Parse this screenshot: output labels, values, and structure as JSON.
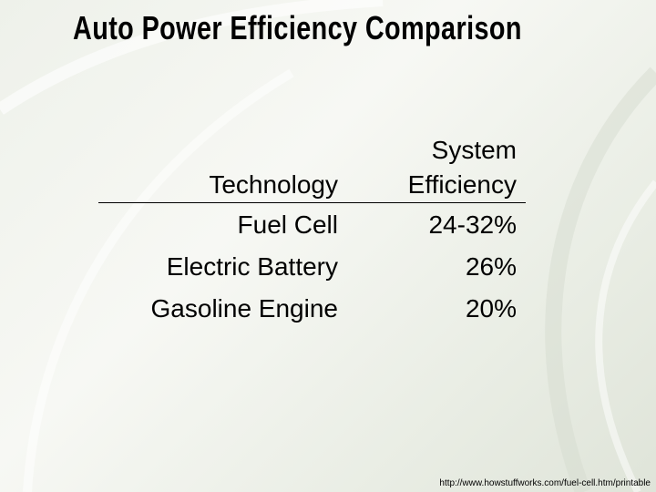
{
  "title": "Auto Power Efficiency Comparison",
  "table": {
    "header": [
      "Technology",
      "System\nEfficiency"
    ],
    "rows": [
      [
        "Fuel Cell",
        "24-32%"
      ],
      [
        "Electric Battery",
        "26%"
      ],
      [
        "Gasoline Engine",
        "20%"
      ]
    ]
  },
  "source": "http://www.howstuffworks.com/fuel-cell.htm/printable"
}
